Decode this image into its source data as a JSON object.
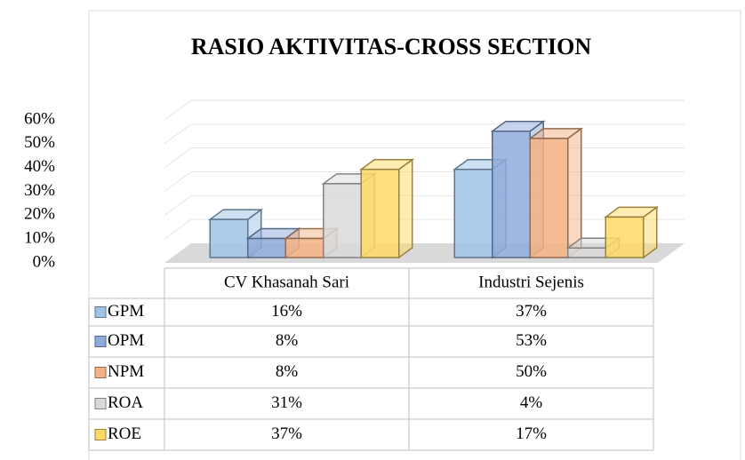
{
  "chart_data": {
    "type": "bar3d",
    "title": "RASIO AKTIVITAS-CROSS SECTION",
    "categories": [
      "CV Khasanah Sari",
      "Industri Sejenis"
    ],
    "series": [
      {
        "name": "GPM",
        "color": "#9dc3e6",
        "values": [
          16,
          37
        ],
        "value_labels": [
          "16%",
          "37%"
        ]
      },
      {
        "name": "OPM",
        "color": "#8faadc",
        "values": [
          8,
          53
        ],
        "value_labels": [
          "8%",
          "53%"
        ]
      },
      {
        "name": "NPM",
        "color": "#f4b183",
        "values": [
          8,
          50
        ],
        "value_labels": [
          "8%",
          "50%"
        ]
      },
      {
        "name": "ROA",
        "color": "#d9d9d9",
        "values": [
          31,
          4
        ],
        "value_labels": [
          "31%",
          "4%"
        ]
      },
      {
        "name": "ROE",
        "color": "#ffd966",
        "values": [
          37,
          17
        ],
        "value_labels": [
          "37%",
          "17%"
        ]
      }
    ],
    "ylim": [
      0,
      60
    ],
    "yticks": [
      {
        "value": 0,
        "label": "0%"
      },
      {
        "value": 10,
        "label": "10%"
      },
      {
        "value": 20,
        "label": "20%"
      },
      {
        "value": 30,
        "label": "30%"
      },
      {
        "value": 40,
        "label": "40%"
      },
      {
        "value": 50,
        "label": "50%"
      },
      {
        "value": 60,
        "label": "60%"
      }
    ],
    "grid": true
  }
}
